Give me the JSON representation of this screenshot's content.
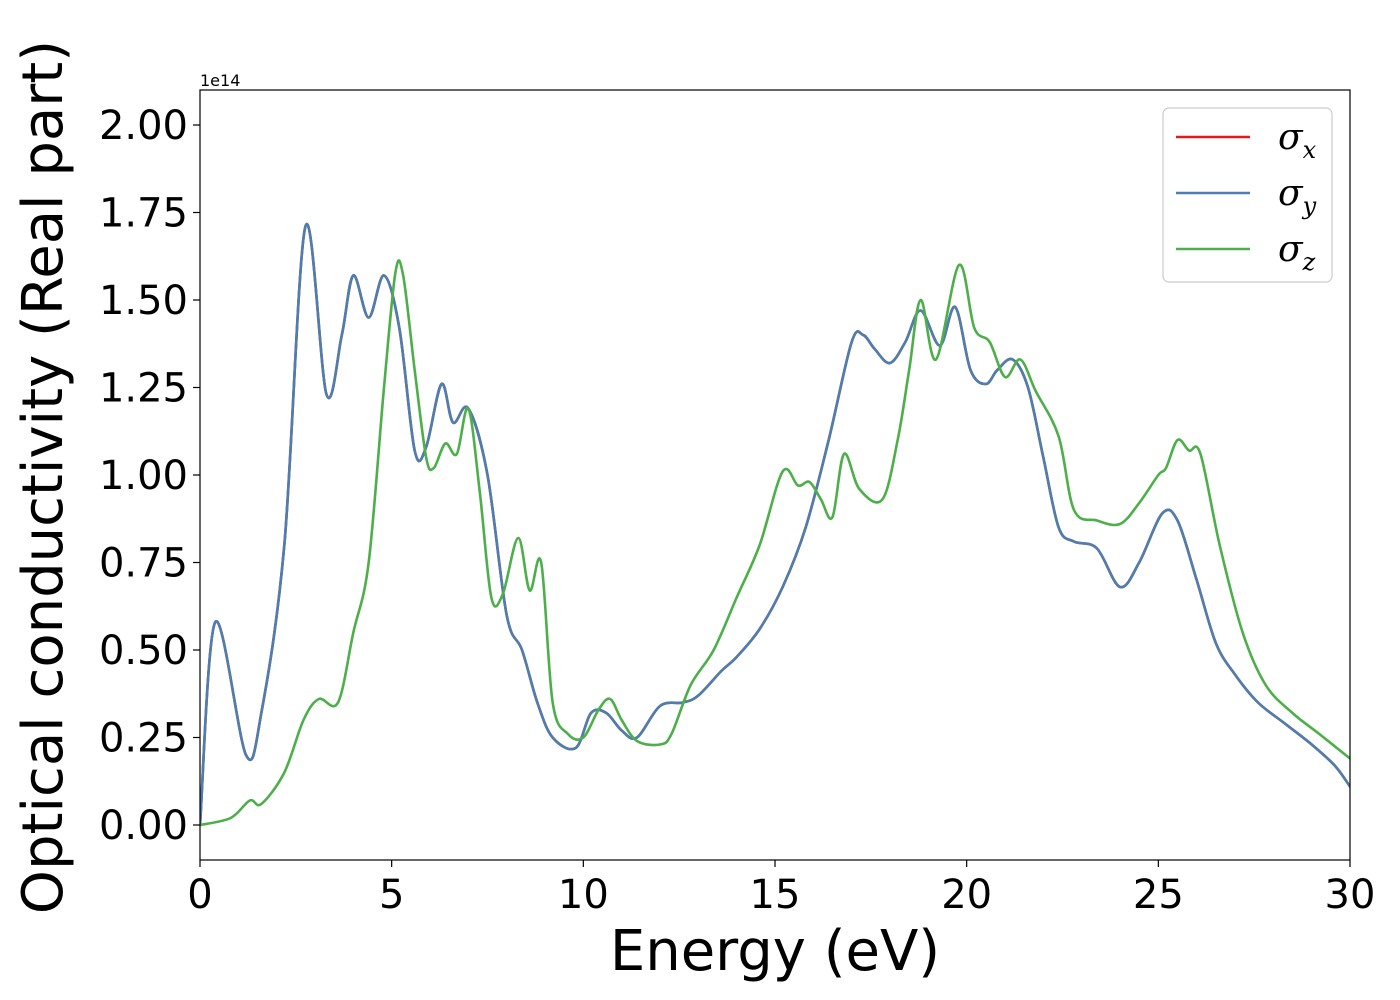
{
  "chart_data": {
    "type": "line",
    "xlabel": "Energy (eV)",
    "ylabel": "Optical conductivity (Real part)",
    "y_offset_label": "1e14",
    "xlim": [
      0,
      30
    ],
    "ylim": [
      -0.1,
      2.1
    ],
    "y_scale": 100000000000000.0,
    "x_ticks": [
      0,
      5,
      10,
      15,
      20,
      25,
      30
    ],
    "x_tick_labels": [
      "0",
      "5",
      "10",
      "15",
      "20",
      "25",
      "30"
    ],
    "y_ticks": [
      0.0,
      0.25,
      0.5,
      0.75,
      1.0,
      1.25,
      1.5,
      1.75,
      2.0
    ],
    "y_tick_labels": [
      "0.00",
      "0.25",
      "0.50",
      "0.75",
      "1.00",
      "1.25",
      "1.50",
      "1.75",
      "2.00"
    ],
    "grid": false,
    "legend_position": "top-right",
    "series": [
      {
        "name": "σx",
        "legend_base": "σ",
        "legend_sub": "x",
        "color": "#e41a1c",
        "x": [
          0,
          0.4,
          1.2,
          1.6,
          2.2,
          2.75,
          3.3,
          3.7,
          4.0,
          4.4,
          4.8,
          5.2,
          5.6,
          5.9,
          6.3,
          6.6,
          7.0,
          7.5,
          8.0,
          8.4,
          8.8,
          9.2,
          9.8,
          10.2,
          10.6,
          11.0,
          11.4,
          12.0,
          12.6,
          13.0,
          13.6,
          14.0,
          14.6,
          15.2,
          15.8,
          16.4,
          17.0,
          17.3,
          17.6,
          18.0,
          18.4,
          18.8,
          19.3,
          19.7,
          20.1,
          20.5,
          20.8,
          21.2,
          21.6,
          22.0,
          22.4,
          22.8,
          23.4,
          24.0,
          24.5,
          25.1,
          25.5,
          26.0,
          26.5,
          27.0,
          27.6,
          28.3,
          29.0,
          29.6,
          30.0
        ],
        "values": [
          0.0,
          0.58,
          0.2,
          0.32,
          0.8,
          1.71,
          1.23,
          1.4,
          1.57,
          1.45,
          1.57,
          1.42,
          1.07,
          1.08,
          1.26,
          1.15,
          1.19,
          1.0,
          0.6,
          0.5,
          0.35,
          0.25,
          0.22,
          0.32,
          0.32,
          0.27,
          0.25,
          0.34,
          0.35,
          0.37,
          0.44,
          0.48,
          0.56,
          0.68,
          0.85,
          1.1,
          1.38,
          1.4,
          1.36,
          1.32,
          1.38,
          1.47,
          1.37,
          1.48,
          1.3,
          1.26,
          1.3,
          1.33,
          1.25,
          1.05,
          0.85,
          0.81,
          0.79,
          0.68,
          0.75,
          0.89,
          0.87,
          0.7,
          0.52,
          0.43,
          0.35,
          0.29,
          0.23,
          0.17,
          0.11
        ]
      },
      {
        "name": "σy",
        "legend_base": "σ",
        "legend_sub": "y",
        "color": "#4a7fb0",
        "x": [
          0,
          0.4,
          1.2,
          1.6,
          2.2,
          2.75,
          3.3,
          3.7,
          4.0,
          4.4,
          4.8,
          5.2,
          5.6,
          5.9,
          6.3,
          6.6,
          7.0,
          7.5,
          8.0,
          8.4,
          8.8,
          9.2,
          9.8,
          10.2,
          10.6,
          11.0,
          11.4,
          12.0,
          12.6,
          13.0,
          13.6,
          14.0,
          14.6,
          15.2,
          15.8,
          16.4,
          17.0,
          17.3,
          17.6,
          18.0,
          18.4,
          18.8,
          19.3,
          19.7,
          20.1,
          20.5,
          20.8,
          21.2,
          21.6,
          22.0,
          22.4,
          22.8,
          23.4,
          24.0,
          24.5,
          25.1,
          25.5,
          26.0,
          26.5,
          27.0,
          27.6,
          28.3,
          29.0,
          29.6,
          30.0
        ],
        "values": [
          0.0,
          0.58,
          0.2,
          0.32,
          0.8,
          1.71,
          1.23,
          1.4,
          1.57,
          1.45,
          1.57,
          1.42,
          1.07,
          1.08,
          1.26,
          1.15,
          1.19,
          1.0,
          0.6,
          0.5,
          0.35,
          0.25,
          0.22,
          0.32,
          0.32,
          0.27,
          0.25,
          0.34,
          0.35,
          0.37,
          0.44,
          0.48,
          0.56,
          0.68,
          0.85,
          1.1,
          1.38,
          1.4,
          1.36,
          1.32,
          1.38,
          1.47,
          1.37,
          1.48,
          1.3,
          1.26,
          1.3,
          1.33,
          1.25,
          1.05,
          0.85,
          0.81,
          0.79,
          0.68,
          0.75,
          0.89,
          0.87,
          0.7,
          0.52,
          0.43,
          0.35,
          0.29,
          0.23,
          0.17,
          0.11
        ]
      },
      {
        "name": "σz",
        "legend_base": "σ",
        "legend_sub": "z",
        "color": "#4daf4a",
        "x": [
          0,
          0.8,
          1.3,
          1.6,
          2.2,
          2.7,
          3.1,
          3.6,
          4.0,
          4.4,
          4.8,
          5.1,
          5.3,
          5.6,
          5.9,
          6.1,
          6.4,
          6.7,
          7.0,
          7.3,
          7.6,
          7.9,
          8.3,
          8.6,
          8.9,
          9.2,
          9.6,
          10.0,
          10.4,
          10.7,
          11.0,
          11.4,
          12.0,
          12.3,
          12.8,
          13.4,
          14.0,
          14.6,
          15.2,
          15.6,
          15.9,
          16.2,
          16.5,
          16.8,
          17.2,
          17.8,
          18.2,
          18.5,
          18.8,
          19.2,
          19.8,
          20.2,
          20.6,
          21.0,
          21.4,
          21.8,
          22.4,
          22.8,
          23.4,
          24.0,
          24.5,
          25.0,
          25.2,
          25.5,
          25.8,
          26.1,
          26.6,
          27.2,
          27.8,
          28.5,
          29.2,
          30.0
        ],
        "values": [
          0.0,
          0.02,
          0.07,
          0.06,
          0.15,
          0.3,
          0.36,
          0.35,
          0.55,
          0.75,
          1.25,
          1.58,
          1.57,
          1.3,
          1.05,
          1.02,
          1.09,
          1.06,
          1.19,
          0.95,
          0.65,
          0.66,
          0.82,
          0.67,
          0.75,
          0.35,
          0.26,
          0.25,
          0.33,
          0.36,
          0.3,
          0.24,
          0.23,
          0.26,
          0.4,
          0.5,
          0.65,
          0.8,
          1.01,
          0.97,
          0.98,
          0.93,
          0.88,
          1.06,
          0.96,
          0.93,
          1.1,
          1.3,
          1.5,
          1.33,
          1.6,
          1.42,
          1.38,
          1.28,
          1.33,
          1.24,
          1.11,
          0.9,
          0.87,
          0.86,
          0.92,
          1.0,
          1.02,
          1.1,
          1.07,
          1.06,
          0.8,
          0.55,
          0.4,
          0.32,
          0.26,
          0.19
        ]
      }
    ]
  }
}
